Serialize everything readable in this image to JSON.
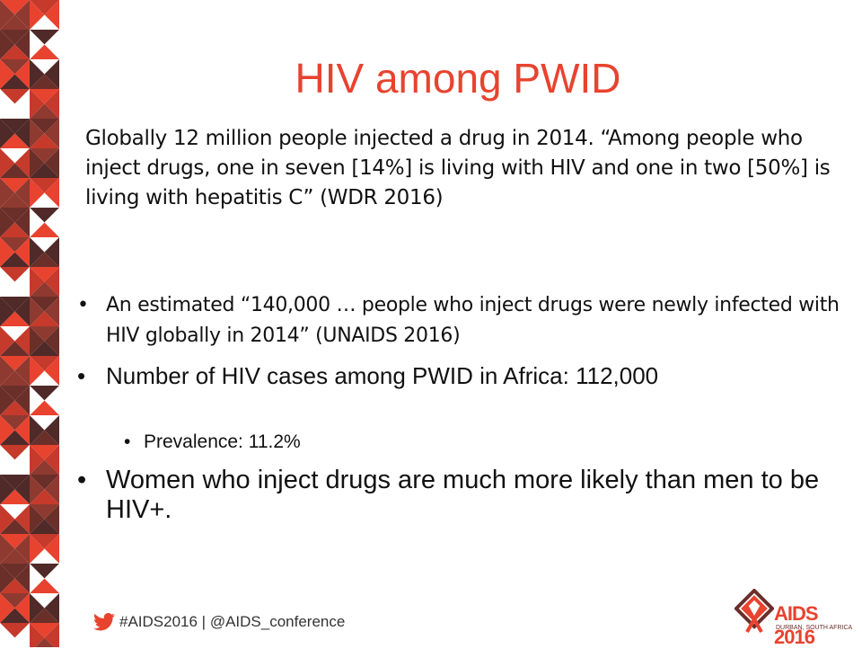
{
  "slide": {
    "title": "HIV among PWID",
    "intro": "Globally 12 million people injected a drug in 2014. “Among people who inject drugs, one in seven [14%] is living with HIV and one in two [50%] is living with hepatitis C” (WDR 2016)",
    "bullets": [
      {
        "text": "An estimated “140,000 … people who inject drugs were newly infected with HIV globally in 2014” (UNAIDS 2016)"
      },
      {
        "text": "Number of HIV cases among PWID in Africa: 112,000",
        "sub": [
          "Prevalence: 11.2%"
        ]
      },
      {
        "text": "Women who inject drugs are much more likely than men to be HIV+."
      }
    ],
    "footer": "#AIDS2016 | @AIDS_conference",
    "logo": {
      "title": "AIDS 2016",
      "subtitle": "DURBAN, SOUTH AFRICA"
    }
  }
}
